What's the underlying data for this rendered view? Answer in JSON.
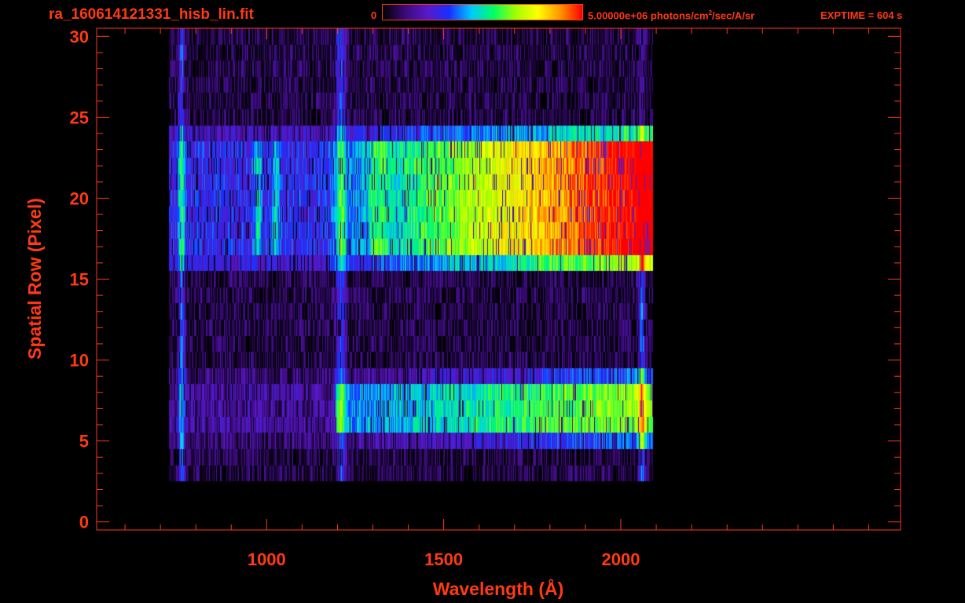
{
  "header": {
    "file_title": "ra_160614121331_hisb_lin.fit",
    "colorbar_min": "0",
    "colorbar_max_prefix": "5.00000e+06 photons/cm",
    "colorbar_max_exp": "2",
    "colorbar_max_suffix": "/sec/A/sr",
    "exptime": "EXPTIME = 604 s"
  },
  "colors": {
    "axis": "#ff3a14",
    "background": "#000000",
    "colormap": [
      "#000000",
      "#3a0a78",
      "#5a18c8",
      "#1830ff",
      "#00c8ff",
      "#00ff64",
      "#a0ff00",
      "#ffff00",
      "#ff9600",
      "#ff0000"
    ]
  },
  "chart_data": {
    "type": "heatmap",
    "title": "ra_160614121331_hisb_lin.fit",
    "xlabel": "Wavelength (Å)",
    "ylabel": "Spatial Row (Pixel)",
    "xlim": [
      520,
      2790
    ],
    "ylim": [
      -0.5,
      30.5
    ],
    "x_ticks": [
      1000,
      1500,
      2000
    ],
    "x_tick_labels": [
      "1000",
      "1500",
      "2000"
    ],
    "y_ticks": [
      0,
      5,
      10,
      15,
      20,
      25,
      30
    ],
    "y_tick_labels": [
      "0",
      "5",
      "10",
      "15",
      "20",
      "25",
      "30"
    ],
    "colorbar_range": [
      0,
      5000000
    ],
    "colorbar_units": "photons/cm2/sec/A/sr",
    "data_extent_wavelength": [
      735,
      2070
    ],
    "bright_bands_rows": [
      [
        17,
        23
      ],
      [
        6,
        8
      ]
    ],
    "spectral_features_wavelength": [
      760,
      975,
      1025,
      1210,
      1305,
      1330,
      2060
    ]
  }
}
